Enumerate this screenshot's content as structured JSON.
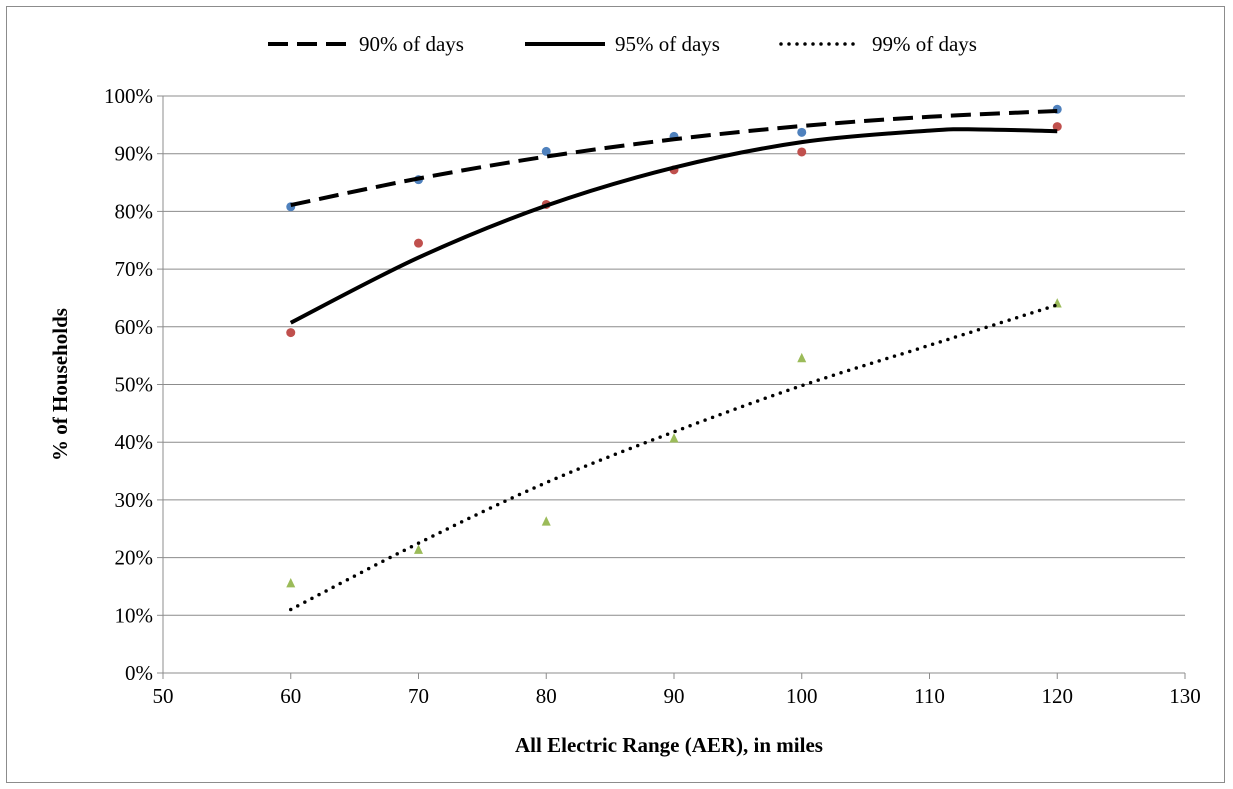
{
  "chart_data": {
    "type": "scatter",
    "title": "",
    "xlabel": "All Electric Range (AER), in miles",
    "ylabel": "% of Households",
    "xlim": [
      50,
      130
    ],
    "ylim": [
      0,
      1
    ],
    "x_ticks": [
      50,
      60,
      70,
      80,
      90,
      100,
      110,
      120,
      130
    ],
    "x_tick_labels": [
      "50",
      "60",
      "70",
      "80",
      "90",
      "100",
      "110",
      "120",
      "130"
    ],
    "y_ticks": [
      0,
      0.1,
      0.2,
      0.3,
      0.4,
      0.5,
      0.6,
      0.7,
      0.8,
      0.9,
      1.0
    ],
    "y_tick_labels": [
      "0%",
      "10%",
      "20%",
      "30%",
      "40%",
      "50%",
      "60%",
      "70%",
      "80%",
      "90%",
      "100%"
    ],
    "grid": "horizontal",
    "legend_position": "top",
    "legend": [
      {
        "label": "90% of days",
        "line_style": "dashed"
      },
      {
        "label": "95% of days",
        "line_style": "solid"
      },
      {
        "label": "99% of days",
        "line_style": "dotted"
      }
    ],
    "series": [
      {
        "name": "90% of days",
        "marker": "circle",
        "marker_color": "#4f81bd",
        "line_style": "dashed",
        "x": [
          60,
          70,
          80,
          90,
          100,
          120
        ],
        "y": [
          0.808,
          0.855,
          0.904,
          0.93,
          0.937,
          0.977
        ],
        "trendline_x": [
          60,
          70,
          80,
          90,
          100,
          110,
          120
        ],
        "trendline_y": [
          0.811,
          0.857,
          0.895,
          0.925,
          0.948,
          0.964,
          0.974
        ]
      },
      {
        "name": "95% of days",
        "marker": "circle",
        "marker_color": "#c0504d",
        "line_style": "solid",
        "x": [
          60,
          70,
          80,
          90,
          100,
          120
        ],
        "y": [
          0.59,
          0.745,
          0.812,
          0.872,
          0.903,
          0.947
        ],
        "trendline_x": [
          60,
          70,
          80,
          90,
          100,
          110,
          114,
          120
        ],
        "trendline_y": [
          0.607,
          0.72,
          0.81,
          0.876,
          0.92,
          0.94,
          0.942,
          0.939
        ]
      },
      {
        "name": "99% of days",
        "marker": "triangle",
        "marker_color": "#9bbb59",
        "line_style": "dotted",
        "x": [
          60,
          70,
          80,
          90,
          100,
          120
        ],
        "y": [
          0.155,
          0.213,
          0.262,
          0.406,
          0.545,
          0.64
        ],
        "trendline_x": [
          60,
          70,
          80,
          90,
          100,
          110,
          120
        ],
        "trendline_y": [
          0.11,
          0.225,
          0.33,
          0.418,
          0.498,
          0.568,
          0.638
        ]
      }
    ]
  }
}
